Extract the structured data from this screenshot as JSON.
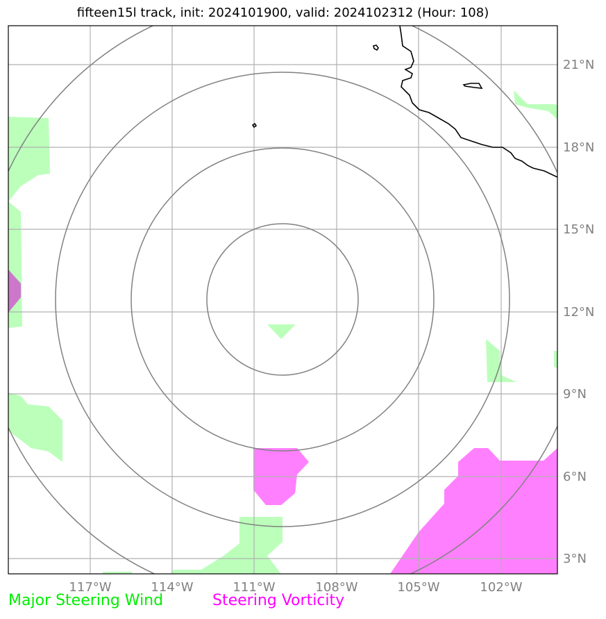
{
  "title": "fifteen15l track, init: 2024101900, valid: 2024102312 (Hour: 108)",
  "map": {
    "lon_ticks": [
      "117°W",
      "114°W",
      "111°W",
      "108°W",
      "105°W",
      "102°W"
    ],
    "lat_ticks": [
      "21°N",
      "18°N",
      "15°N",
      "12°N",
      "9°N",
      "6°N",
      "3°N"
    ],
    "range_rings": 4,
    "colors": {
      "steering_wind": "#bbffbb",
      "steering_vorticity": "#ff80ff",
      "overlap": "#cc77cc",
      "rings": "#808080",
      "grid": "#b0b0b0",
      "coastline": "#000000"
    }
  },
  "legend": {
    "wind_label": "Major Steering Wind",
    "vorticity_label": "Steering Vorticity"
  }
}
